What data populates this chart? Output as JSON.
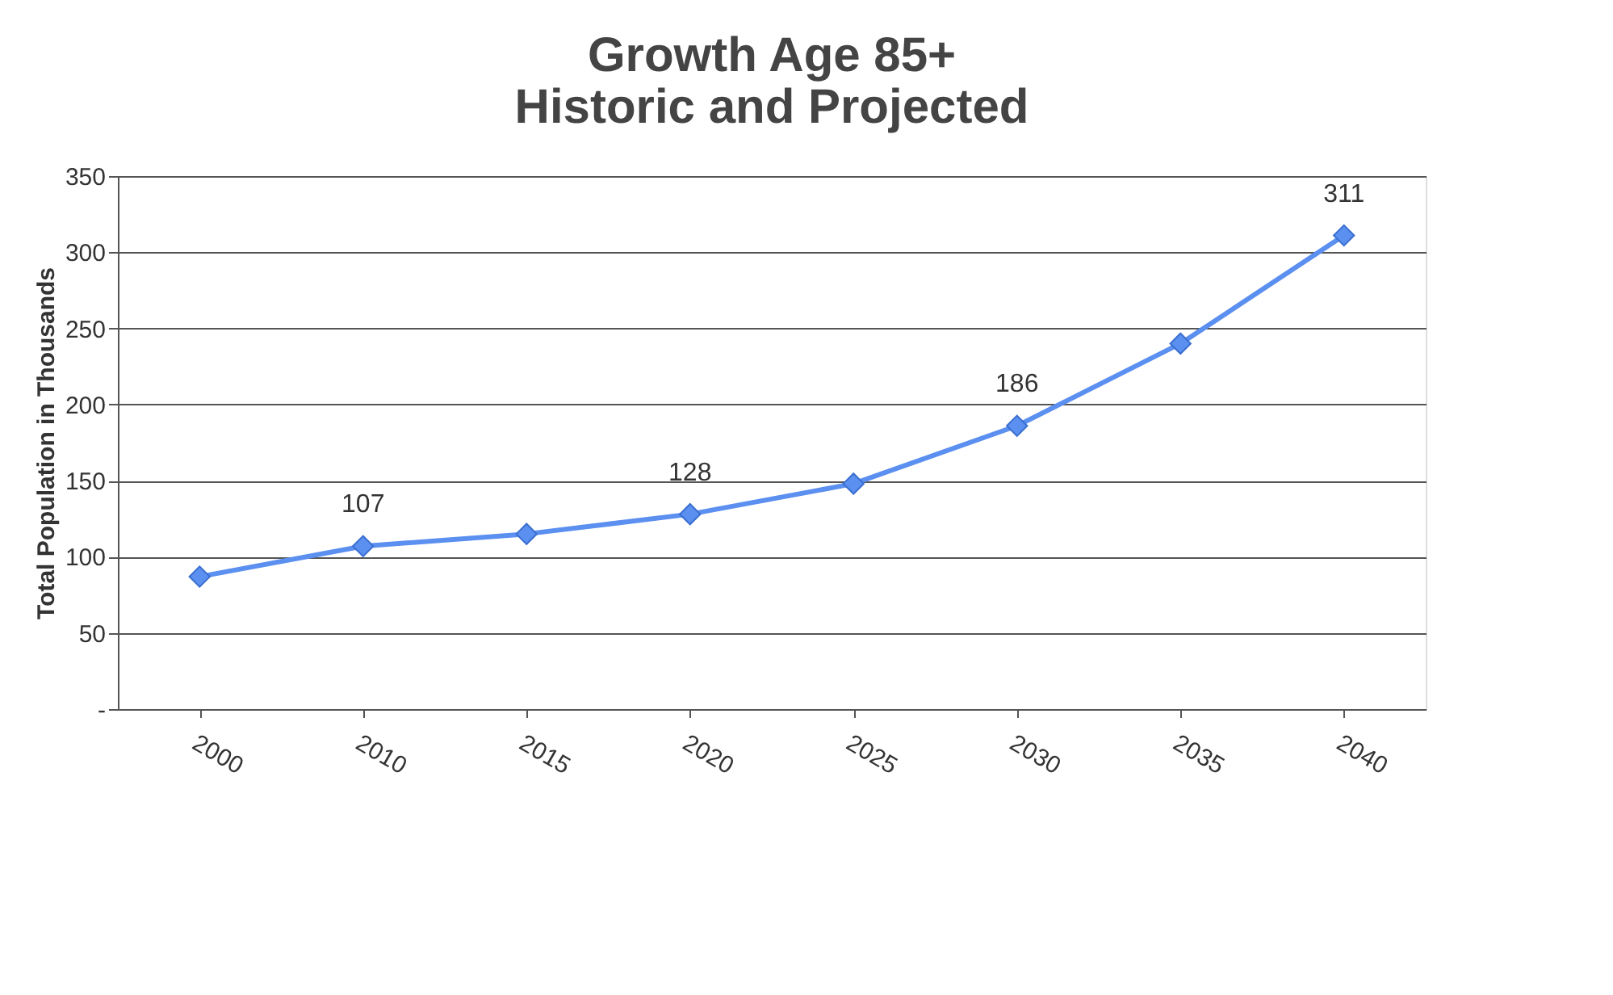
{
  "chart_data": {
    "type": "line",
    "title": "Growth Age 85+\nHistoric and Projected",
    "ylabel": "Total Population in Thousands",
    "categories": [
      "2000",
      "2010",
      "2015",
      "2020",
      "2025",
      "2030",
      "2035",
      "2040"
    ],
    "series": [
      {
        "color": "#5b8ff0",
        "values": [
          87,
          107,
          115,
          128,
          148,
          186,
          240,
          311
        ],
        "value_labels": [
          null,
          "107",
          null,
          "128",
          null,
          "186",
          null,
          "311"
        ]
      }
    ],
    "ylim": [
      0,
      350
    ],
    "yticks": [
      {
        "value": 0,
        "label": "-"
      },
      50,
      100,
      150,
      200,
      250,
      300,
      350
    ],
    "grid": "y",
    "marker": "diamond",
    "line_style": "solid"
  }
}
